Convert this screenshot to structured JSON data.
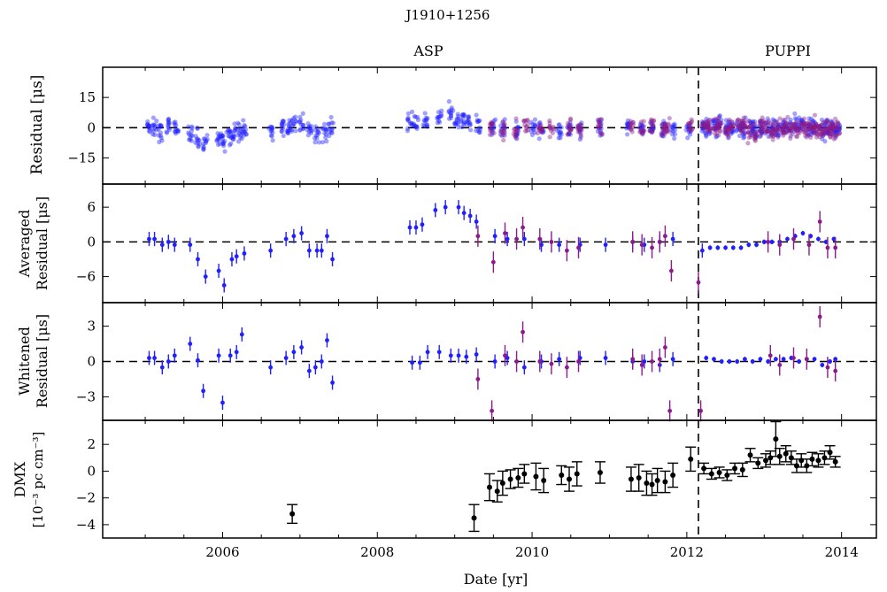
{
  "figure": {
    "title": "J1910+1256",
    "label_left": "ASP",
    "label_right": "PUPPI",
    "xlabel": "Date [yr]",
    "x_ticks": [
      2006,
      2008,
      2010,
      2012,
      2014
    ],
    "xlim": [
      2004.45,
      2014.45
    ],
    "backend_switch_year": 2012.15,
    "colors": {
      "asp": "#1f1fff",
      "puppi": "#8b1a8b",
      "dmx": "#000000",
      "zero_line": "#000000"
    }
  },
  "chart_data": [
    {
      "type": "scatter",
      "panel": "residual",
      "ylabel": "Residual [μs]",
      "y_ticks": [
        15,
        0,
        -15
      ],
      "ylim": [
        -28,
        30
      ],
      "series": [
        {
          "name": "ASP",
          "x": [
            2005.05,
            2005.12,
            2005.2,
            2005.3,
            2005.4,
            2005.58,
            2005.68,
            2005.78,
            2005.95,
            2006.02,
            2006.08,
            2006.15,
            2006.22,
            2006.28,
            2006.62,
            2006.78,
            2006.85,
            2006.92,
            2007.02,
            2007.12,
            2007.22,
            2007.32,
            2007.4,
            2008.42,
            2008.5,
            2008.62,
            2008.8,
            2008.95,
            2009.02,
            2009.1,
            2009.18,
            2009.3,
            2009.5,
            2009.62,
            2009.82,
            2010.02,
            2010.12,
            2010.35,
            2010.48,
            2010.62,
            2010.88,
            2011.25,
            2011.42,
            2011.55,
            2011.7,
            2011.82,
            2012.02,
            2012.25,
            2012.4,
            2012.55,
            2012.7,
            2012.85,
            2013.0,
            2013.15,
            2013.3,
            2013.45,
            2013.62,
            2013.78,
            2013.92
          ],
          "y": [
            1,
            0,
            -1,
            0,
            1,
            -3,
            -5,
            -7,
            -5,
            -6,
            -4,
            -2,
            -2,
            -1,
            -1,
            1,
            0,
            1,
            2,
            -1,
            -3,
            -2,
            0,
            4,
            3,
            4,
            6,
            8,
            5,
            4,
            3,
            1,
            0,
            0,
            -1,
            0,
            0,
            -1,
            -1,
            -1,
            0,
            0,
            -1,
            0,
            -1,
            -1,
            -1,
            0,
            1,
            0,
            -1,
            0,
            0,
            -1,
            0,
            1,
            0,
            -1,
            0
          ]
        },
        {
          "name": "PUPPI",
          "x": [
            2009.48,
            2009.62,
            2009.78,
            2009.92,
            2010.1,
            2010.25,
            2010.48,
            2010.62,
            2010.88,
            2011.28,
            2011.42,
            2011.55,
            2011.7,
            2011.75,
            2012.05,
            2012.25,
            2012.4,
            2012.55,
            2012.7,
            2012.85,
            2013.0,
            2013.12,
            2013.25,
            2013.38,
            2013.5,
            2013.62,
            2013.72,
            2013.82,
            2013.92
          ],
          "y": [
            0,
            -1,
            0,
            2,
            -1,
            0,
            -1,
            0,
            0,
            0,
            -1,
            1,
            -1,
            0,
            0,
            1,
            0,
            -1,
            0,
            -2,
            0,
            -1,
            0,
            -1,
            0,
            1,
            -2,
            0,
            -1
          ]
        }
      ]
    },
    {
      "type": "scatter",
      "panel": "averaged",
      "ylabel_lines": [
        "Averaged",
        "Residual [μs]"
      ],
      "y_ticks": [
        6,
        0,
        -6
      ],
      "ylim": [
        -10.5,
        10
      ],
      "series": [
        {
          "name": "ASP",
          "x": [
            2005.05,
            2005.12,
            2005.22,
            2005.3,
            2005.38,
            2005.58,
            2005.68,
            2005.78,
            2005.95,
            2006.02,
            2006.12,
            2006.18,
            2006.28,
            2006.62,
            2006.82,
            2006.92,
            2007.02,
            2007.12,
            2007.22,
            2007.28,
            2007.35,
            2007.42,
            2008.42,
            2008.5,
            2008.58,
            2008.75,
            2008.88,
            2009.05,
            2009.12,
            2009.2,
            2009.28,
            2009.52,
            2009.68,
            2009.9,
            2010.12,
            2010.35,
            2010.62,
            2010.95,
            2011.3,
            2011.45,
            2011.65,
            2011.82,
            2012.2,
            2012.3,
            2012.4,
            2012.5,
            2012.6,
            2012.7,
            2012.8,
            2012.9,
            2013.0,
            2013.1,
            2013.2,
            2013.3,
            2013.4,
            2013.5,
            2013.6,
            2013.7,
            2013.8,
            2013.9
          ],
          "y": [
            0.5,
            0.5,
            -0.5,
            0,
            -0.5,
            -0.5,
            -3,
            -6,
            -5,
            -7.5,
            -3,
            -2.5,
            -2,
            -1.5,
            0.5,
            1,
            1.5,
            -1.5,
            -1.5,
            -1.5,
            1,
            -3,
            2.5,
            2.5,
            3,
            5.5,
            6,
            6,
            5,
            4.5,
            3.5,
            1,
            0.5,
            0.5,
            -0.5,
            -0.5,
            -0.5,
            -0.5,
            0,
            -0.5,
            0,
            0.5,
            -1.5,
            -1,
            -1,
            -1,
            -1,
            -1,
            -0.5,
            -0.5,
            0,
            0,
            0,
            0.5,
            1,
            1.5,
            1,
            0.5,
            0,
            0.5
          ]
        },
        {
          "name": "PUPPI",
          "x": [
            2009.3,
            2009.5,
            2009.65,
            2009.8,
            2009.88,
            2010.1,
            2010.25,
            2010.45,
            2010.6,
            2011.3,
            2011.42,
            2011.55,
            2011.65,
            2011.72,
            2011.8,
            2012.15,
            2013.05,
            2013.2,
            2013.38,
            2013.58,
            2013.72,
            2013.82,
            2013.92
          ],
          "y": [
            1,
            -3.5,
            1.5,
            0.5,
            2.5,
            0.5,
            0,
            -1.5,
            -1,
            0,
            -0.5,
            -1,
            0,
            1,
            -5,
            -7,
            0,
            -0.5,
            0.5,
            -0.5,
            3.5,
            -1,
            -1
          ]
        }
      ]
    },
    {
      "type": "scatter",
      "panel": "whitened",
      "ylabel_lines": [
        "Whitened",
        "Residual [μs]"
      ],
      "y_ticks": [
        3,
        0,
        -3
      ],
      "ylim": [
        -5,
        5
      ],
      "series": [
        {
          "name": "ASP",
          "x": [
            2005.05,
            2005.12,
            2005.22,
            2005.3,
            2005.38,
            2005.58,
            2005.68,
            2005.75,
            2005.95,
            2006.0,
            2006.1,
            2006.18,
            2006.25,
            2006.62,
            2006.82,
            2006.92,
            2007.02,
            2007.12,
            2007.2,
            2007.28,
            2007.35,
            2007.42,
            2008.45,
            2008.55,
            2008.65,
            2008.8,
            2008.95,
            2009.05,
            2009.15,
            2009.28,
            2009.52,
            2009.68,
            2009.9,
            2010.12,
            2010.35,
            2010.62,
            2010.95,
            2011.3,
            2011.45,
            2011.65,
            2011.82,
            2012.25,
            2012.35,
            2012.45,
            2012.55,
            2012.65,
            2012.75,
            2012.85,
            2012.95,
            2013.05,
            2013.15,
            2013.25,
            2013.35,
            2013.45,
            2013.55,
            2013.65,
            2013.75,
            2013.85,
            2013.92
          ],
          "y": [
            0.3,
            0.3,
            -0.5,
            0,
            0.5,
            1.5,
            0.1,
            -2.5,
            0.5,
            -3.5,
            0.5,
            0.8,
            2.3,
            -0.5,
            0.3,
            0.8,
            1.2,
            -0.8,
            -0.5,
            0,
            1.8,
            -1.8,
            -0.1,
            -0.1,
            0.8,
            0.8,
            0.5,
            0.5,
            0.4,
            0.6,
            0,
            0.3,
            -0.5,
            0,
            0.2,
            0.3,
            0.3,
            0,
            0,
            -0.3,
            0.2,
            0.3,
            0.2,
            0,
            0,
            0,
            0.2,
            0,
            0.2,
            0,
            0.2,
            0.2,
            0.3,
            0,
            0.2,
            0.2,
            -0.3,
            0,
            0.2
          ]
        },
        {
          "name": "PUPPI",
          "x": [
            2009.3,
            2009.48,
            2009.65,
            2009.8,
            2009.88,
            2010.1,
            2010.25,
            2010.45,
            2010.6,
            2011.3,
            2011.42,
            2011.55,
            2011.65,
            2011.72,
            2011.78,
            2012.18,
            2013.08,
            2013.2,
            2013.38,
            2013.55,
            2013.72,
            2013.82,
            2013.92
          ],
          "y": [
            -1.5,
            -4.2,
            0.5,
            0,
            2.5,
            0,
            -0.2,
            -0.5,
            0,
            0.2,
            -0.3,
            0,
            0.2,
            1.2,
            -4.2,
            -4.2,
            0.5,
            -0.3,
            0.3,
            0.2,
            3.8,
            -0.5,
            -0.8
          ]
        }
      ]
    },
    {
      "type": "scatter",
      "panel": "dmx",
      "ylabel_lines": [
        "DMX",
        "[10⁻³ pc cm⁻³]"
      ],
      "y_ticks": [
        2,
        0,
        -2,
        -4
      ],
      "ylim": [
        -5,
        3.8
      ],
      "series": [
        {
          "name": "DMX",
          "x": [
            2006.9,
            2009.25,
            2009.45,
            2009.55,
            2009.62,
            2009.72,
            2009.82,
            2009.9,
            2010.05,
            2010.15,
            2010.38,
            2010.48,
            2010.58,
            2010.88,
            2011.28,
            2011.38,
            2011.48,
            2011.55,
            2011.62,
            2011.72,
            2011.82,
            2012.05,
            2012.22,
            2012.32,
            2012.42,
            2012.52,
            2012.62,
            2012.72,
            2012.82,
            2012.92,
            2013.02,
            2013.08,
            2013.15,
            2013.2,
            2013.28,
            2013.35,
            2013.42,
            2013.48,
            2013.55,
            2013.62,
            2013.7,
            2013.78,
            2013.85,
            2013.92
          ],
          "y": [
            -3.2,
            -3.5,
            -1.2,
            -1.5,
            -0.9,
            -0.6,
            -0.5,
            -0.2,
            -0.4,
            -0.7,
            -0.3,
            -0.6,
            -0.2,
            -0.1,
            -0.6,
            -0.5,
            -0.9,
            -1.0,
            -0.7,
            -0.8,
            -0.3,
            0.9,
            0.2,
            -0.2,
            -0.1,
            -0.3,
            0.2,
            0.1,
            1.2,
            0.6,
            0.8,
            1.0,
            2.4,
            1.1,
            1.3,
            1.0,
            0.4,
            0.8,
            0.4,
            0.9,
            0.8,
            1.0,
            1.4,
            0.7
          ],
          "err": [
            0.7,
            1.0,
            1.0,
            0.8,
            0.9,
            0.7,
            0.7,
            0.7,
            1.0,
            0.9,
            0.7,
            0.9,
            0.9,
            0.8,
            0.9,
            1.0,
            0.9,
            0.8,
            0.9,
            0.8,
            0.9,
            0.9,
            0.4,
            0.4,
            0.4,
            0.4,
            0.4,
            0.5,
            0.5,
            0.4,
            0.5,
            0.5,
            1.3,
            0.6,
            0.6,
            0.5,
            0.5,
            0.5,
            0.5,
            0.5,
            0.5,
            0.5,
            0.5,
            0.4
          ]
        }
      ]
    }
  ]
}
